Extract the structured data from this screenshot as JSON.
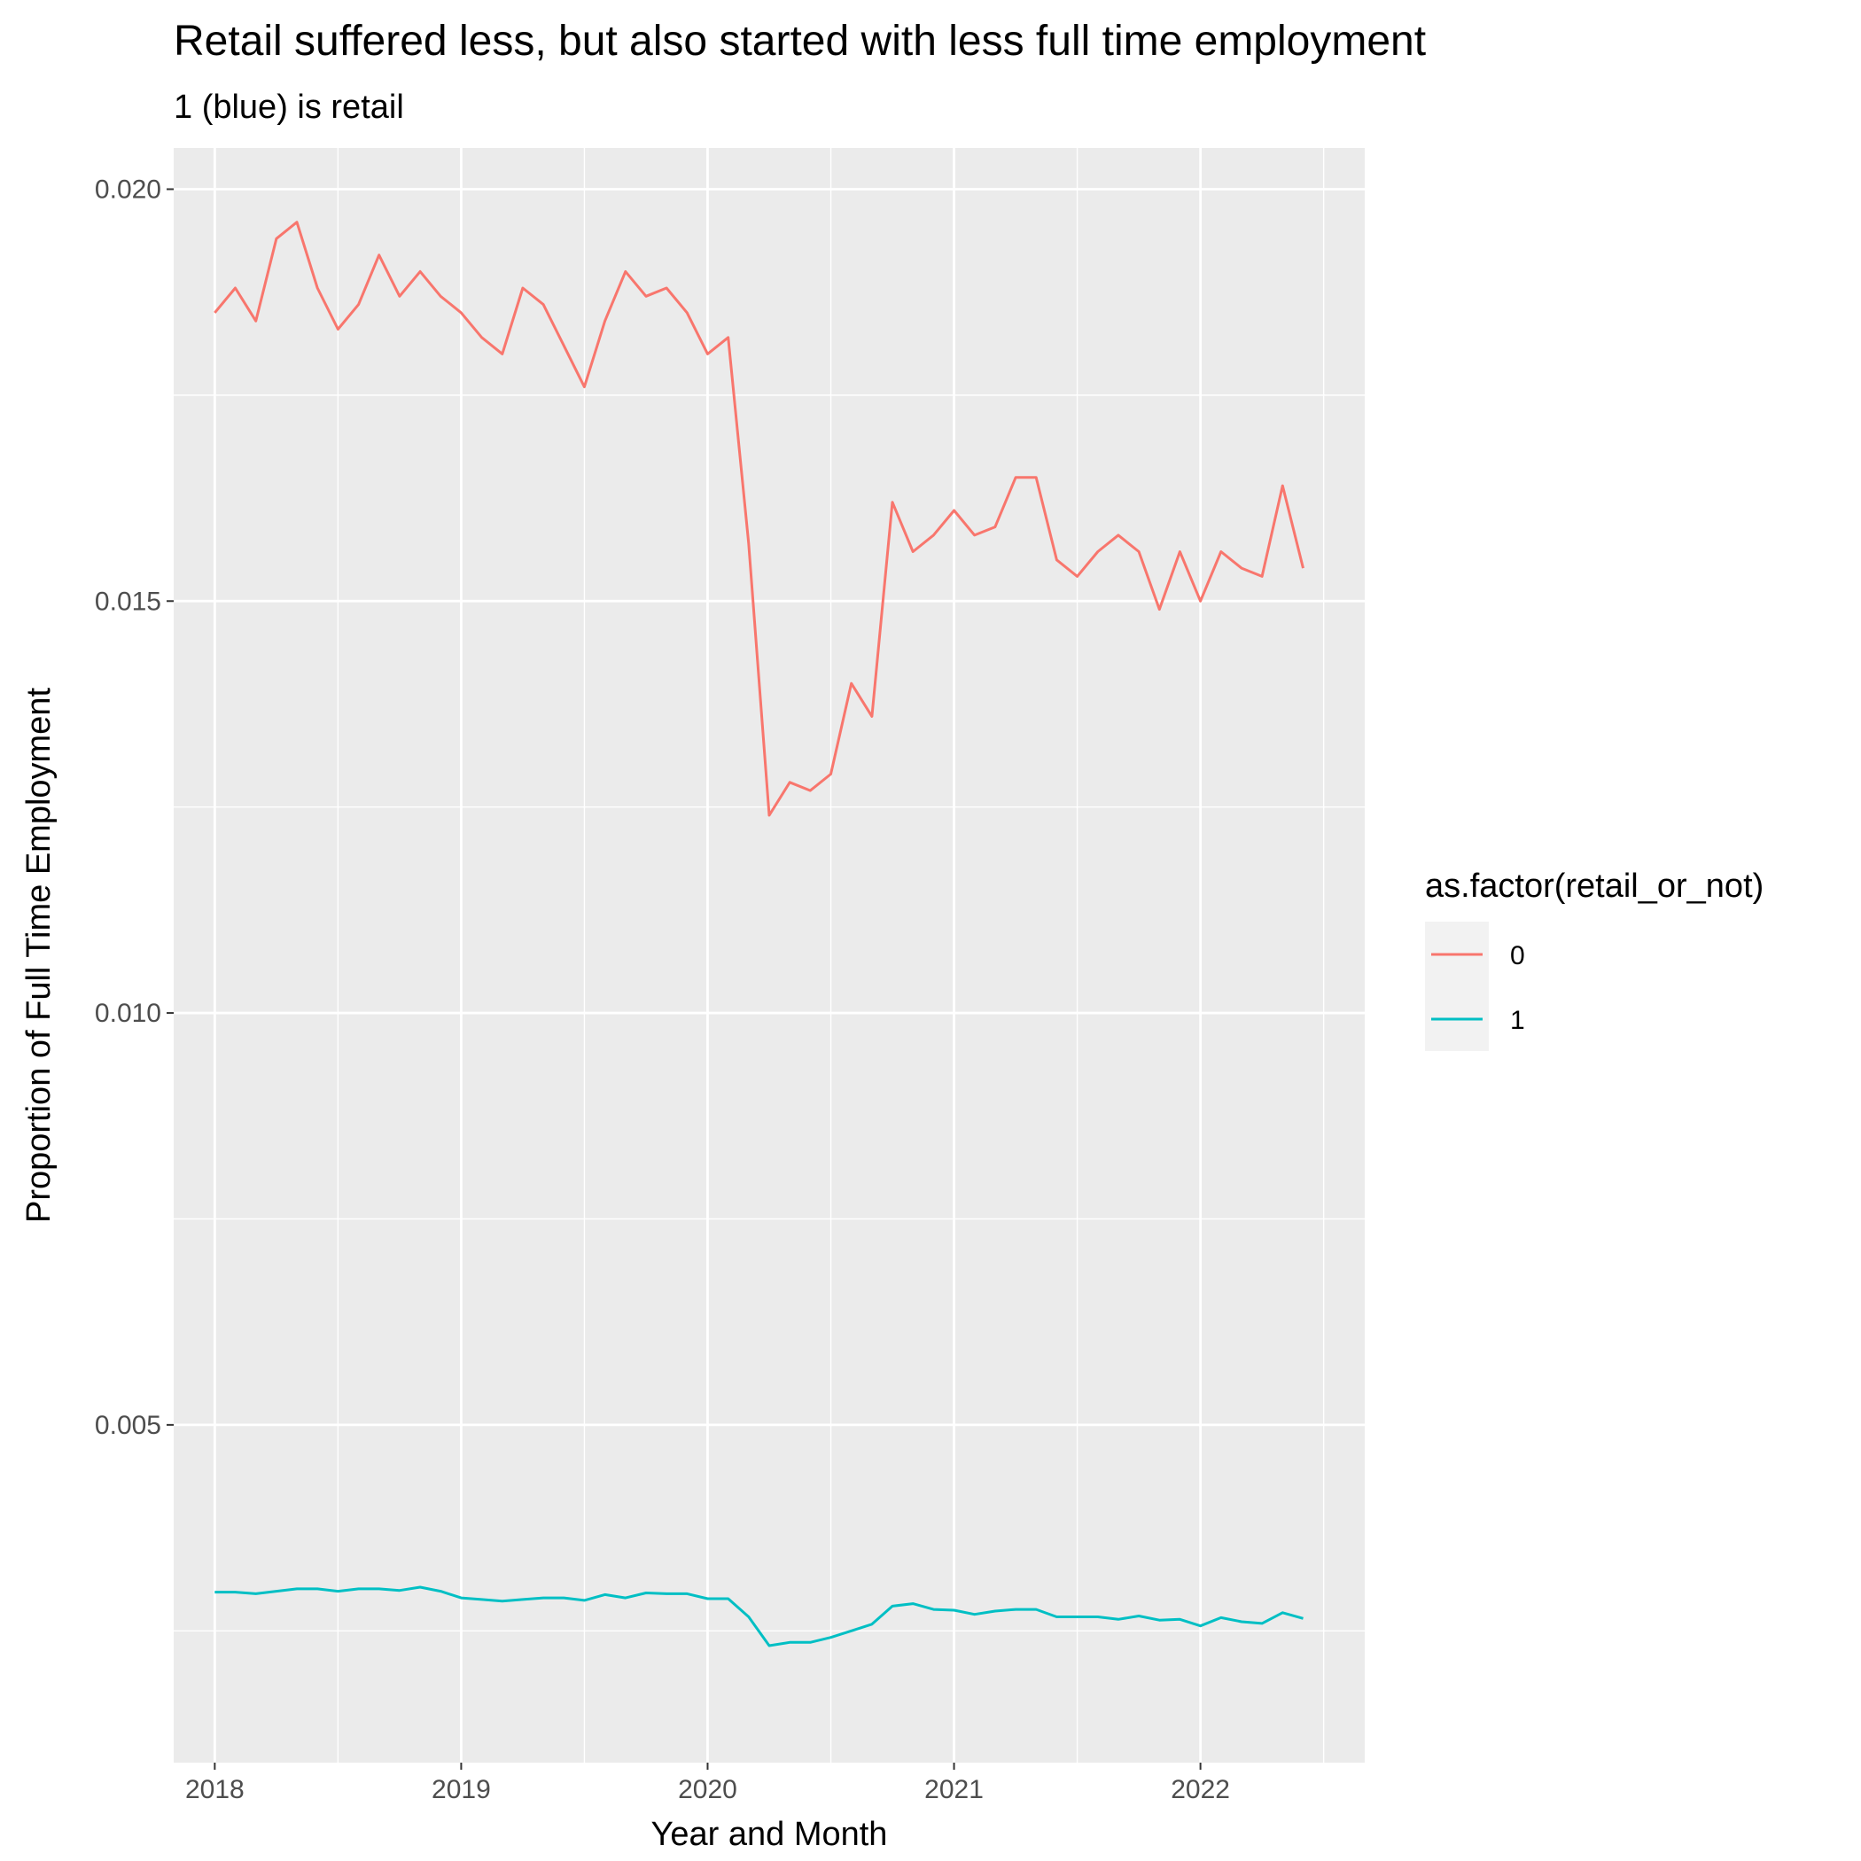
{
  "chart_data": {
    "type": "line",
    "title": "Retail suffered less, but also started with less full time employment",
    "subtitle": "1 (blue) is retail",
    "xlabel": "Year and Month",
    "ylabel": "Proportion of Full Time Employment",
    "x_ticks": [
      "2018",
      "2019",
      "2020",
      "2021",
      "2022"
    ],
    "y_ticks": [
      "0.005",
      "0.010",
      "0.015",
      "0.020"
    ],
    "xlim": [
      "2017-11",
      "2022-09"
    ],
    "ylim": [
      0.0009,
      0.0205
    ],
    "grid": true,
    "legend": {
      "title": "as.factor(retail_or_not)",
      "position": "right"
    },
    "x": [
      "2018-01",
      "2018-02",
      "2018-03",
      "2018-04",
      "2018-05",
      "2018-06",
      "2018-07",
      "2018-08",
      "2018-09",
      "2018-10",
      "2018-11",
      "2018-12",
      "2019-01",
      "2019-02",
      "2019-03",
      "2019-04",
      "2019-05",
      "2019-06",
      "2019-07",
      "2019-08",
      "2019-09",
      "2019-10",
      "2019-11",
      "2019-12",
      "2020-01",
      "2020-02",
      "2020-03",
      "2020-04",
      "2020-05",
      "2020-06",
      "2020-07",
      "2020-08",
      "2020-09",
      "2020-10",
      "2020-11",
      "2020-12",
      "2021-01",
      "2021-02",
      "2021-03",
      "2021-04",
      "2021-05",
      "2021-06",
      "2021-07",
      "2021-08",
      "2021-09",
      "2021-10",
      "2021-11",
      "2021-12",
      "2022-01",
      "2022-02",
      "2022-03",
      "2022-04",
      "2022-05",
      "2022-06"
    ],
    "series": [
      {
        "name": "0",
        "color": "#F8766D",
        "values": [
          0.0185,
          0.0188,
          0.0184,
          0.0194,
          0.0196,
          0.0188,
          0.0183,
          0.0186,
          0.0192,
          0.0187,
          0.019,
          0.0187,
          0.0185,
          0.0182,
          0.018,
          0.0188,
          0.0186,
          0.0181,
          0.0176,
          0.0184,
          0.019,
          0.0187,
          0.0188,
          0.0185,
          0.018,
          0.0182,
          0.0157,
          0.0124,
          0.0128,
          0.0127,
          0.0129,
          0.014,
          0.0136,
          0.0162,
          0.0156,
          0.0158,
          0.0161,
          0.0158,
          0.0159,
          0.0165,
          0.0165,
          0.0155,
          0.0153,
          0.0156,
          0.0158,
          0.0156,
          0.0149,
          0.0156,
          0.015,
          0.0156,
          0.0154,
          0.0153,
          0.0164,
          0.0154
        ]
      },
      {
        "name": "1",
        "color": "#00BFC4",
        "values": [
          0.00297,
          0.00297,
          0.00295,
          0.00298,
          0.00301,
          0.00301,
          0.00298,
          0.00301,
          0.00301,
          0.00299,
          0.00303,
          0.00298,
          0.0029,
          0.00288,
          0.00286,
          0.00288,
          0.0029,
          0.0029,
          0.00287,
          0.00294,
          0.0029,
          0.00296,
          0.00295,
          0.00295,
          0.00289,
          0.00289,
          0.00267,
          0.00232,
          0.00236,
          0.00236,
          0.00242,
          0.0025,
          0.00258,
          0.0028,
          0.00283,
          0.00276,
          0.00275,
          0.0027,
          0.00274,
          0.00276,
          0.00276,
          0.00267,
          0.00267,
          0.00267,
          0.00264,
          0.00268,
          0.00263,
          0.00264,
          0.00256,
          0.00266,
          0.00261,
          0.00259,
          0.00272,
          0.00265
        ]
      }
    ]
  }
}
